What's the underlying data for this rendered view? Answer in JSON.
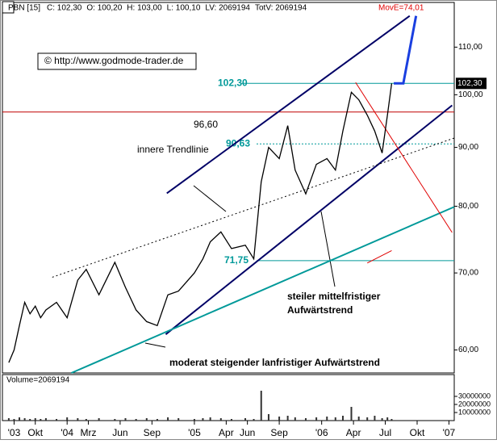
{
  "header": {
    "symbol": "PBN [15]",
    "items": [
      "C: 102,30",
      "O: 100,20",
      "H: 103,00",
      "L: 100,10",
      "LV: 2069194",
      "TotV: 2069194"
    ],
    "move": "MovE=74,01"
  },
  "copyright": "© http://www.godmode-trader.de",
  "chart_data": [
    {
      "type": "line",
      "log_scale": true,
      "x": [
        6.5,
        7,
        7.5,
        8,
        8.5,
        9,
        9.5,
        10,
        11,
        12,
        13,
        13.8,
        15,
        16.5,
        17.5,
        18.5,
        19.5,
        20.5,
        21.5,
        22.5,
        24,
        24.8,
        25.5,
        26.5,
        27.5,
        28.8,
        29.6,
        30.3,
        31,
        32,
        32.8,
        33.5,
        34.5,
        35.5,
        36.5,
        37.3,
        38,
        38.8,
        39.5,
        40.3,
        41,
        41.7,
        42.2,
        42.6
      ],
      "series": [
        {
          "color": "#000000",
          "values": [
            58.5,
            60,
            63,
            66,
            64.5,
            65.5,
            64,
            65,
            66,
            64,
            69,
            70.5,
            67,
            71.5,
            68,
            65,
            63.5,
            63,
            67,
            67.5,
            70,
            72,
            74.5,
            76,
            73.5,
            74,
            72,
            84,
            90,
            88,
            94,
            86,
            82,
            87,
            88,
            86,
            93,
            100.5,
            99,
            96,
            93,
            89,
            96,
            102.3
          ]
        }
      ],
      "xlim": [
        5.9,
        48.5
      ],
      "ylim": [
        57.3,
        120.3
      ],
      "xticks": [
        {
          "value": 7,
          "label": "'03"
        },
        {
          "value": 9,
          "label": "Okt"
        },
        {
          "value": 12,
          "label": "'04"
        },
        {
          "value": 14,
          "label": "Mrz"
        },
        {
          "value": 17,
          "label": "Jun"
        },
        {
          "value": 20,
          "label": "Sep"
        },
        {
          "value": 24,
          "label": "'05"
        },
        {
          "value": 27,
          "label": "Apr"
        },
        {
          "value": 29,
          "label": "Jun"
        },
        {
          "value": 32,
          "label": "Sep"
        },
        {
          "value": 36,
          "label": "'06"
        },
        {
          "value": 39,
          "label": "Apr"
        },
        {
          "value": 42,
          "label": "Jul"
        },
        {
          "value": 45,
          "label": "Okt"
        },
        {
          "value": 48,
          "label": "'07"
        }
      ],
      "yticks": [
        {
          "value": 60,
          "label": "60,00"
        },
        {
          "value": 70,
          "label": "70,00"
        },
        {
          "value": 80,
          "label": "80,00"
        },
        {
          "value": 90,
          "label": "90,00"
        },
        {
          "value": 100,
          "label": "100,00"
        },
        {
          "value": 110,
          "label": "110,00"
        }
      ],
      "last_price": {
        "value": 102.3,
        "label": "102,30"
      },
      "levels": [
        {
          "value": 102.3,
          "label": "102,30",
          "color": "#009999"
        },
        {
          "value": 96.6,
          "label": "96,60",
          "color": "#c00000"
        },
        {
          "value": 90.63,
          "label": "90,63",
          "color": "#009999"
        },
        {
          "value": 71.75,
          "label": "71,75",
          "color": "#009999"
        }
      ],
      "trendlines": [
        {
          "x": [
            21.4,
            44.3
          ],
          "y": [
            82.1,
            117.1
          ],
          "color": "#000066"
        },
        {
          "x": [
            21.3,
            48.3
          ],
          "y": [
            61.9,
            97.9
          ],
          "color": "#000066"
        },
        {
          "x": [
            12.4,
            48.5
          ],
          "y": [
            57.3,
            79.9
          ],
          "color": "#009999"
        },
        {
          "x": [
            10.6,
            48.5
          ],
          "y": [
            69.4,
            91.7
          ],
          "color": "#000000"
        },
        {
          "x": [
            39.2,
            48.3
          ],
          "y": [
            102.5,
            75.9
          ],
          "color": "#e00000"
        },
        {
          "x": [
            42.8,
            43.7,
            44.9
          ],
          "y": [
            102.3,
            102.3,
            117.1
          ],
          "color": "#1a3fe0"
        },
        {
          "x": [
            40.3,
            42.6
          ],
          "y": [
            71.4,
            73.2
          ],
          "color": "#e00000"
        }
      ],
      "annotations": [
        "innere Trendlinie",
        "steiler mittelfristiger",
        "Aufwärtstrend",
        "moderat steigender lanfristiger Aufwärtstrend"
      ]
    },
    {
      "type": "bar",
      "title": "Volume=2069194",
      "values": [
        3,
        2,
        4,
        3,
        2,
        3,
        2,
        3,
        2,
        4,
        3,
        2,
        3,
        2,
        3,
        2,
        3,
        2,
        4,
        3,
        2,
        3,
        4,
        3,
        2,
        3,
        2,
        37,
        8,
        5,
        6,
        4,
        3,
        4,
        5,
        4,
        6,
        17,
        5,
        4,
        6,
        3,
        4,
        2
      ],
      "ylim": [
        0,
        57000000
      ],
      "scale": 1000000,
      "yticks": [
        10000000,
        20000000,
        30000000
      ]
    }
  ]
}
